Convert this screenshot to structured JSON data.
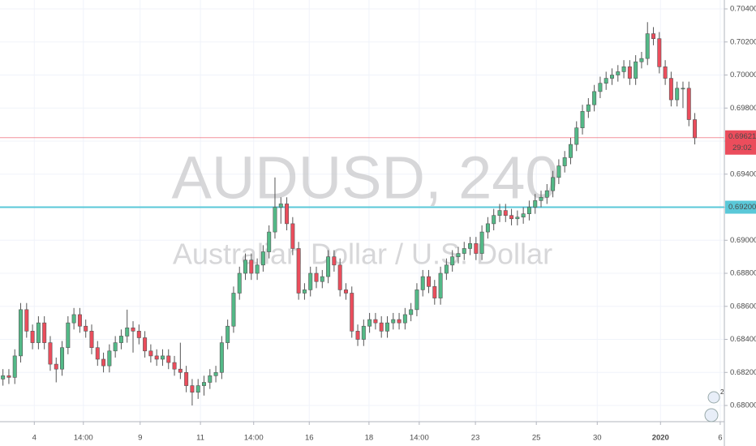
{
  "chart_data": {
    "type": "candlestick",
    "watermark_title": "AUDUSD, 240",
    "watermark_subtitle": "Australian Dollar / U.S. Dollar",
    "up_color": "#53b987",
    "down_color": "#eb4d5c",
    "open": [
      0.6816,
      0.6818,
      0.6817,
      0.683,
      0.6858,
      0.6845,
      0.6838,
      0.685,
      0.6838,
      0.6825,
      0.6822,
      0.6835,
      0.685,
      0.6855,
      0.6848,
      0.6845,
      0.6835,
      0.6828,
      0.6824,
      0.6833,
      0.6838,
      0.6842,
      0.6847,
      0.6845,
      0.6841,
      0.6833,
      0.683,
      0.6828,
      0.683,
      0.6826,
      0.6822,
      0.682,
      0.6812,
      0.6808,
      0.6812,
      0.6814,
      0.6818,
      0.682,
      0.6838,
      0.6848,
      0.6868,
      0.688,
      0.6888,
      0.688,
      0.6885,
      0.6893,
      0.6905,
      0.692,
      0.6922,
      0.691,
      0.6895,
      0.6868,
      0.687,
      0.688,
      0.6875,
      0.6878,
      0.689,
      0.6885,
      0.687,
      0.6868,
      0.6845,
      0.684,
      0.6848,
      0.6852,
      0.685,
      0.6845,
      0.685,
      0.6852,
      0.685,
      0.6855,
      0.6858,
      0.687,
      0.6878,
      0.6872,
      0.6865,
      0.688,
      0.6885,
      0.689,
      0.6892,
      0.6895,
      0.6898,
      0.6892,
      0.6905,
      0.691,
      0.6915,
      0.6918,
      0.6915,
      0.6913,
      0.6914,
      0.6916,
      0.692,
      0.6924,
      0.6926,
      0.693,
      0.6938,
      0.6945,
      0.695,
      0.6958,
      0.6968,
      0.6978,
      0.6982,
      0.699,
      0.6995,
      0.6998,
      0.7,
      0.7002,
      0.7005,
      0.6998,
      0.7008,
      0.701,
      0.7025,
      0.7022,
      0.7005,
      0.6998,
      0.6985,
      0.6992,
      0.6992,
      0.6973
    ],
    "high": [
      0.6822,
      0.6822,
      0.6834,
      0.6862,
      0.6862,
      0.6849,
      0.6854,
      0.6854,
      0.6842,
      0.6829,
      0.6839,
      0.6854,
      0.6859,
      0.6859,
      0.6852,
      0.6849,
      0.6839,
      0.6832,
      0.6837,
      0.6842,
      0.6846,
      0.6858,
      0.6851,
      0.6849,
      0.6845,
      0.6837,
      0.6834,
      0.6834,
      0.6834,
      0.683,
      0.6838,
      0.6824,
      0.6816,
      0.6816,
      0.6818,
      0.6822,
      0.6824,
      0.6842,
      0.6852,
      0.6872,
      0.6884,
      0.6892,
      0.6892,
      0.6889,
      0.6897,
      0.6909,
      0.6938,
      0.6926,
      0.6926,
      0.6914,
      0.6899,
      0.6874,
      0.6884,
      0.6884,
      0.6882,
      0.6894,
      0.6894,
      0.6889,
      0.6874,
      0.6872,
      0.6849,
      0.6852,
      0.6856,
      0.6856,
      0.6854,
      0.6854,
      0.6856,
      0.6856,
      0.6859,
      0.6862,
      0.6874,
      0.6882,
      0.6882,
      0.6876,
      0.6884,
      0.6889,
      0.6894,
      0.6896,
      0.6899,
      0.6902,
      0.6902,
      0.6909,
      0.6914,
      0.6919,
      0.6922,
      0.6922,
      0.6919,
      0.6918,
      0.692,
      0.6924,
      0.6928,
      0.693,
      0.6934,
      0.6942,
      0.6949,
      0.6954,
      0.6962,
      0.6972,
      0.6982,
      0.6986,
      0.6994,
      0.6999,
      0.7002,
      0.7004,
      0.7006,
      0.7009,
      0.7009,
      0.7012,
      0.7014,
      0.7032,
      0.7029,
      0.7026,
      0.7009,
      0.7002,
      0.6996,
      0.6996,
      0.6996,
      0.6977
    ],
    "low": [
      0.6812,
      0.6813,
      0.6813,
      0.6826,
      0.6841,
      0.6834,
      0.6834,
      0.6834,
      0.6821,
      0.6814,
      0.6818,
      0.6831,
      0.6846,
      0.6844,
      0.6841,
      0.6831,
      0.6824,
      0.682,
      0.682,
      0.6829,
      0.6834,
      0.6838,
      0.6832,
      0.6837,
      0.6829,
      0.6826,
      0.6824,
      0.6824,
      0.6822,
      0.6818,
      0.6816,
      0.6808,
      0.68,
      0.6804,
      0.6806,
      0.681,
      0.6814,
      0.6816,
      0.6834,
      0.6844,
      0.6864,
      0.6876,
      0.6876,
      0.6876,
      0.6881,
      0.6889,
      0.6901,
      0.691,
      0.6906,
      0.6891,
      0.6864,
      0.6864,
      0.6866,
      0.6871,
      0.6871,
      0.6874,
      0.6881,
      0.6866,
      0.6864,
      0.6841,
      0.6836,
      0.6836,
      0.6844,
      0.6846,
      0.6841,
      0.6841,
      0.6846,
      0.6846,
      0.6846,
      0.6851,
      0.6854,
      0.6866,
      0.6868,
      0.6861,
      0.6861,
      0.6876,
      0.6881,
      0.6886,
      0.6888,
      0.6891,
      0.6888,
      0.6888,
      0.6901,
      0.6906,
      0.6911,
      0.6911,
      0.6909,
      0.6909,
      0.691,
      0.6912,
      0.6916,
      0.692,
      0.6922,
      0.6926,
      0.6934,
      0.6941,
      0.6946,
      0.6954,
      0.6964,
      0.6974,
      0.6978,
      0.6986,
      0.6991,
      0.6994,
      0.6996,
      0.6998,
      0.6994,
      0.6994,
      0.7004,
      0.7006,
      0.7018,
      0.7001,
      0.6994,
      0.6981,
      0.6981,
      0.698,
      0.6969,
      0.6958
    ],
    "close": [
      0.6818,
      0.6817,
      0.683,
      0.6858,
      0.6845,
      0.6838,
      0.685,
      0.6838,
      0.6825,
      0.6822,
      0.6835,
      0.685,
      0.6855,
      0.6848,
      0.6845,
      0.6835,
      0.6828,
      0.6824,
      0.6833,
      0.6838,
      0.6842,
      0.6847,
      0.6845,
      0.6841,
      0.6833,
      0.683,
      0.6828,
      0.683,
      0.6826,
      0.6822,
      0.682,
      0.6812,
      0.6808,
      0.6812,
      0.6814,
      0.6818,
      0.682,
      0.6838,
      0.6848,
      0.6868,
      0.688,
      0.6888,
      0.688,
      0.6885,
      0.6893,
      0.6905,
      0.692,
      0.6922,
      0.691,
      0.6895,
      0.6868,
      0.687,
      0.688,
      0.6875,
      0.6878,
      0.689,
      0.6885,
      0.687,
      0.6868,
      0.6845,
      0.684,
      0.6848,
      0.6852,
      0.685,
      0.6845,
      0.685,
      0.6852,
      0.685,
      0.6855,
      0.6858,
      0.687,
      0.6878,
      0.6872,
      0.6865,
      0.688,
      0.6885,
      0.689,
      0.6892,
      0.6895,
      0.6898,
      0.6892,
      0.6905,
      0.691,
      0.6915,
      0.6918,
      0.6915,
      0.6913,
      0.6914,
      0.6916,
      0.692,
      0.6924,
      0.6926,
      0.693,
      0.6938,
      0.6945,
      0.695,
      0.6958,
      0.6968,
      0.6978,
      0.6982,
      0.699,
      0.6995,
      0.6998,
      0.7,
      0.7002,
      0.7005,
      0.6998,
      0.7008,
      0.701,
      0.7025,
      0.7022,
      0.7005,
      0.6998,
      0.6985,
      0.6992,
      0.6992,
      0.6973,
      0.6962
    ],
    "xlim": [
      -0.5,
      122
    ],
    "xticks": [
      {
        "value": 5.3,
        "label": "4"
      },
      {
        "value": 13.6,
        "label": "14:00"
      },
      {
        "value": 23.2,
        "label": "9"
      },
      {
        "value": 33.4,
        "label": "11"
      },
      {
        "value": 42.4,
        "label": "14:00"
      },
      {
        "value": 51.8,
        "label": "16"
      },
      {
        "value": 61.9,
        "label": "18"
      },
      {
        "value": 70.4,
        "label": "14:00"
      },
      {
        "value": 79.9,
        "label": "23"
      },
      {
        "value": 90.2,
        "label": "25"
      },
      {
        "value": 100.5,
        "label": "30"
      },
      {
        "value": 111.2,
        "label": "2020"
      },
      {
        "value": 121.3,
        "label": "6"
      }
    ],
    "ylim": [
      0.67902,
      0.70454
    ],
    "yticks": [
      {
        "value": 0.68,
        "label": "0.68000"
      },
      {
        "value": 0.682,
        "label": "0.68200"
      },
      {
        "value": 0.684,
        "label": "0.68400"
      },
      {
        "value": 0.686,
        "label": "0.68600"
      },
      {
        "value": 0.688,
        "label": "0.68800"
      },
      {
        "value": 0.69,
        "label": "0.69000"
      },
      {
        "value": 0.692,
        "label": "0.69200"
      },
      {
        "value": 0.694,
        "label": "0.69400"
      },
      {
        "value": 0.696,
        "label": "0.69600"
      },
      {
        "value": 0.698,
        "label": "0.69800"
      },
      {
        "value": 0.7,
        "label": "0.70000"
      },
      {
        "value": 0.702,
        "label": "0.70200"
      },
      {
        "value": 0.704,
        "label": "0.70400"
      }
    ],
    "grid": true,
    "price_line": {
      "value": 0.69621,
      "label": "0.69621",
      "countdown": "29:02",
      "color": "#eb4d5c"
    },
    "level_line": {
      "value": 0.692,
      "label": "0.69200",
      "color": "#5ac8d8"
    },
    "events_badge": "2"
  }
}
